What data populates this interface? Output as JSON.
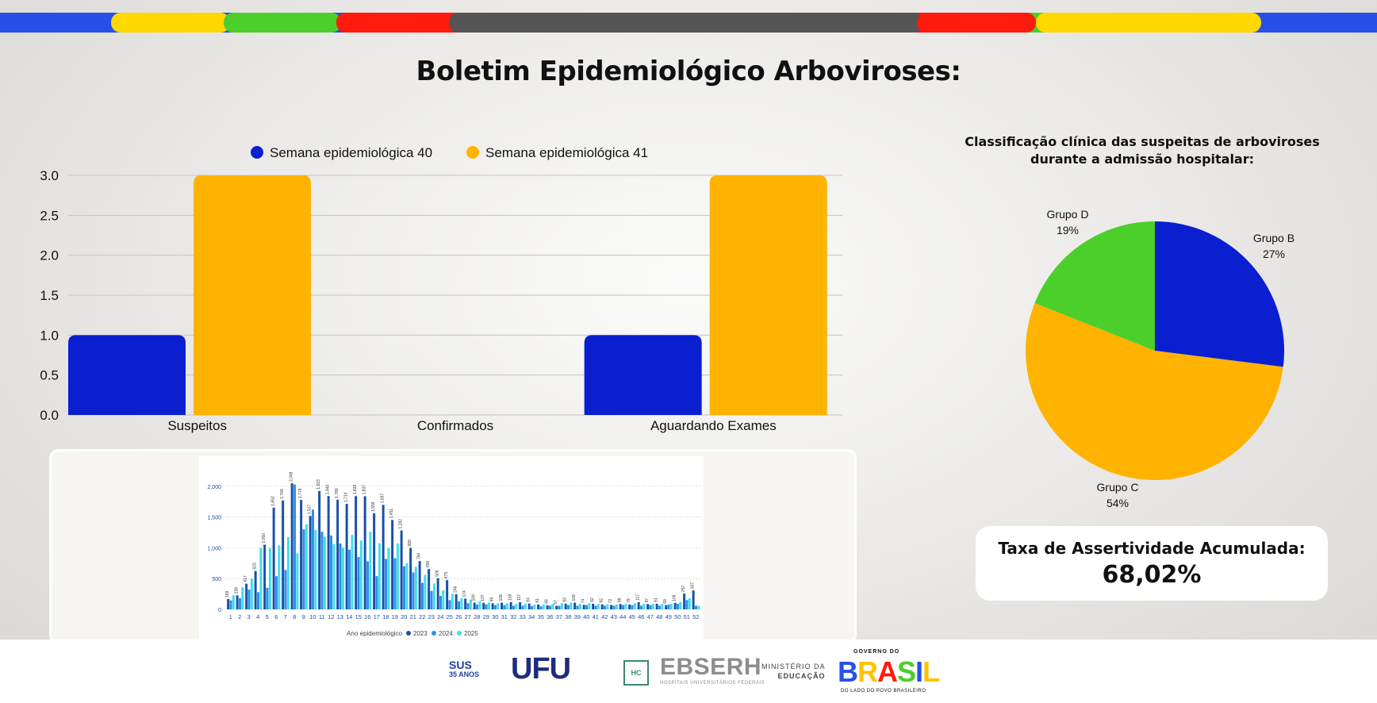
{
  "header": {
    "title": "Boletim Epidemiológico Arboviroses:",
    "stripe_colors": [
      "#2650e6",
      "#ffd800",
      "#4ccf2a",
      "#ff1a0d",
      "#555555",
      "#ff1a0d",
      "#4ccf2a",
      "#ffd800",
      "#2650e6"
    ]
  },
  "chart_data": [
    {
      "type": "bar",
      "categories": [
        "Suspeitos",
        "Confirmados",
        "Aguardando Exames"
      ],
      "series": [
        {
          "name": "Semana epidemiológica 40",
          "values": [
            1,
            0,
            1
          ],
          "color": "#0a1fd0"
        },
        {
          "name": "Semana epidemiológica 41",
          "values": [
            3,
            0,
            3
          ],
          "color": "#ffb300"
        }
      ],
      "ylim": [
        0,
        3
      ],
      "yticks": [
        "0.0",
        "0.5",
        "1.0",
        "1.5",
        "2.0",
        "2.5",
        "3.0"
      ],
      "grid": true,
      "legend": "top-center"
    },
    {
      "type": "pie",
      "title": "Classificação clínica das suspeitas de arboviroses durante a admissão hospitalar:",
      "slices": [
        {
          "label": "Grupo B",
          "value": 27,
          "display": "27%",
          "color": "#0a1fd0"
        },
        {
          "label": "Grupo C",
          "value": 54,
          "display": "54%",
          "color": "#ffb300"
        },
        {
          "label": "Grupo D",
          "value": 19,
          "display": "19%",
          "color": "#4ccf2a"
        }
      ]
    },
    {
      "type": "bar",
      "xlabel": "Ano epidemiológico",
      "categories": [
        "1",
        "2",
        "3",
        "4",
        "5",
        "6",
        "7",
        "8",
        "9",
        "10",
        "11",
        "12",
        "13",
        "14",
        "15",
        "16",
        "17",
        "18",
        "19",
        "20",
        "21",
        "22",
        "23",
        "24",
        "25",
        "26",
        "27",
        "28",
        "29",
        "30",
        "31",
        "32",
        "33",
        "34",
        "35",
        "36",
        "37",
        "38",
        "39",
        "40",
        "41",
        "42",
        "43",
        "44",
        "45",
        "46",
        "47",
        "48",
        "49",
        "50",
        "51",
        "52"
      ],
      "series": [
        {
          "name": "2023",
          "color": "#1b4fa8",
          "values": [
            168,
            228,
            417,
            623,
            1050,
            1652,
            1768,
            2048,
            1778,
            1517,
            1923,
            1840,
            1780,
            1714,
            1839,
            1837,
            1559,
            1697,
            1451,
            1282,
            999,
            784,
            656,
            506,
            475,
            246,
            174,
            109,
            107,
            99,
            109,
            118,
            117,
            94,
            81,
            68,
            57,
            93,
            109,
            74,
            92,
            82,
            72,
            88,
            79,
            117,
            87,
            91,
            69,
            106,
            257,
            307
          ]
        },
        {
          "name": "2024",
          "color": "#2f8ee8",
          "values": [
            145,
            180,
            320,
            280,
            350,
            540,
            640,
            2028,
            1300,
            1620,
            1260,
            1200,
            1070,
            970,
            850,
            780,
            540,
            820,
            830,
            700,
            600,
            430,
            300,
            220,
            150,
            130,
            100,
            80,
            80,
            70,
            70,
            60,
            60,
            55,
            50,
            60,
            60,
            70,
            60,
            70,
            60,
            60,
            60,
            70,
            70,
            60,
            70,
            60,
            80,
            90,
            150,
            60
          ]
        },
        {
          "name": "2025",
          "color": "#3ee0e8",
          "values": [
            230,
            360,
            500,
            1000,
            996,
            1039,
            1173,
            908,
            1380,
            1290,
            1180,
            1060,
            1002,
            1210,
            1119,
            1260,
            1074,
            1000,
            1070,
            750,
            690,
            560,
            420,
            310,
            250,
            180,
            160,
            130,
            110,
            100,
            100,
            90,
            90,
            80,
            80,
            90,
            100,
            110,
            90,
            100,
            90,
            80,
            80,
            90,
            100,
            90,
            90,
            90,
            90,
            120,
            180,
            54
          ]
        }
      ],
      "yticks": [
        "0",
        "500",
        "1,000",
        "1,500",
        "2,000"
      ],
      "ylim": [
        0,
        2100
      ],
      "grid": true,
      "legend": "bottom-center"
    }
  ],
  "legend": {
    "series_40": "Semana epidemiológica 40",
    "series_41": "Semana epidemiológica 41"
  },
  "pie_labels": {
    "grupo_b": "Grupo B",
    "grupo_b_pct": "27%",
    "grupo_c": "Grupo C",
    "grupo_c_pct": "54%",
    "grupo_d": "Grupo D",
    "grupo_d_pct": "19%"
  },
  "accuracy": {
    "label": "Taxa de Assertividade Acumulada:",
    "value": "68,02%"
  },
  "footer": {
    "sus": "SUS",
    "sus_years": "35 ANOS",
    "ufu": "UFU",
    "hc": "HC",
    "ebserh": "EBSERH",
    "ebserh_sub": "HOSPITAIS UNIVERSITÁRIOS FEDERAIS",
    "mec_line1": "MINISTÉRIO DA",
    "mec_line2": "EDUCAÇÃO",
    "gov_top": "GOVERNO DO",
    "gov_word": "BRASIL",
    "gov_sub": "DO LADO DO POVO BRASILEIRO"
  }
}
